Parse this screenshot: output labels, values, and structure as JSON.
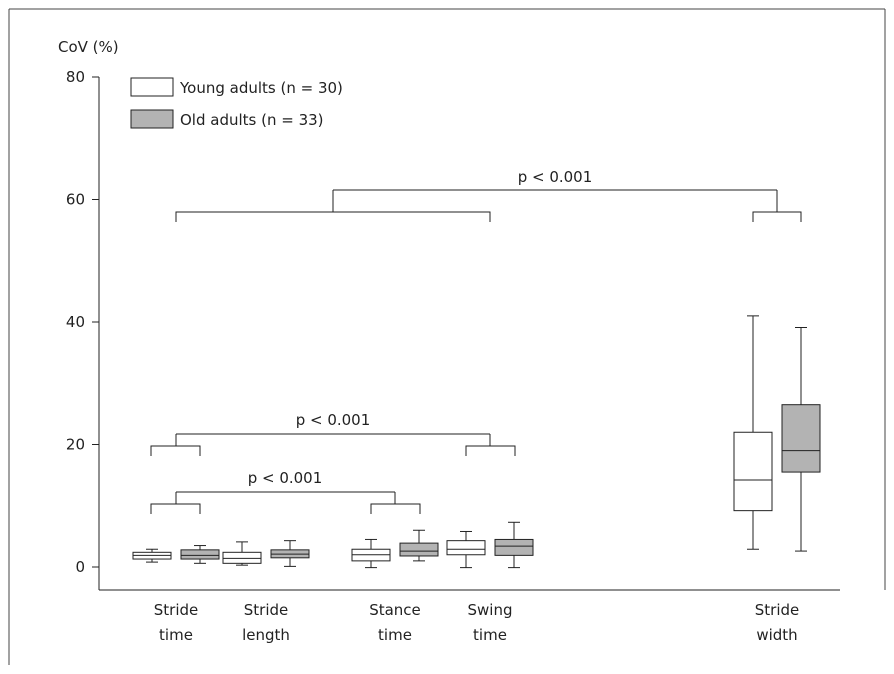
{
  "chart_data": {
    "type": "boxplot",
    "ylabel": "CoV (%)",
    "ylim": [
      0,
      80
    ],
    "yticks": [
      "0",
      "20",
      "40",
      "60",
      "80"
    ],
    "grid": false,
    "legend_placement": "top-left",
    "colors": {
      "young": "#ffffff",
      "old": "#b3b3b3",
      "stroke": "#222222"
    },
    "legend": [
      {
        "label": "Young adults (n = 30)",
        "group": "young"
      },
      {
        "label": "Old adults (n = 33)",
        "group": "old"
      }
    ],
    "groups": [
      {
        "label_lines": [
          "Stride",
          "time"
        ],
        "boxes": [
          {
            "group": "young",
            "min": 0.8,
            "q1": 1.3,
            "median": 1.9,
            "q3": 2.4,
            "max": 2.9
          },
          {
            "group": "old",
            "min": 0.6,
            "q1": 1.3,
            "median": 1.9,
            "q3": 2.8,
            "max": 3.5
          }
        ]
      },
      {
        "label_lines": [
          "Stride",
          "length"
        ],
        "boxes": [
          {
            "group": "young",
            "min": 0.3,
            "q1": 0.6,
            "median": 1.4,
            "q3": 2.4,
            "max": 4.1
          },
          {
            "group": "old",
            "min": 0.1,
            "q1": 1.5,
            "median": 2.1,
            "q3": 2.8,
            "max": 4.3
          }
        ]
      },
      {
        "label_lines": [
          "Stance",
          "time"
        ],
        "boxes": [
          {
            "group": "young",
            "min": -0.1,
            "q1": 1.0,
            "median": 2.0,
            "q3": 2.9,
            "max": 4.5
          },
          {
            "group": "old",
            "min": 1.0,
            "q1": 1.8,
            "median": 2.6,
            "q3": 3.9,
            "max": 6.0
          }
        ]
      },
      {
        "label_lines": [
          "Swing",
          "time"
        ],
        "boxes": [
          {
            "group": "young",
            "min": -0.1,
            "q1": 2.0,
            "median": 2.9,
            "q3": 4.3,
            "max": 5.8
          },
          {
            "group": "old",
            "min": -0.1,
            "q1": 1.9,
            "median": 3.4,
            "q3": 4.5,
            "max": 7.3
          }
        ]
      },
      {
        "label_lines": [
          "Stride",
          "width"
        ],
        "boxes": [
          {
            "group": "young",
            "min": 2.9,
            "q1": 9.2,
            "median": 14.2,
            "q3": 22.0,
            "max": 41.0
          },
          {
            "group": "old",
            "min": 2.6,
            "q1": 15.5,
            "median": 19.0,
            "q3": 26.5,
            "max": 39.1
          }
        ]
      }
    ],
    "annotations": [
      {
        "text": "p < 0.001",
        "from_groups": [
          0,
          3
        ],
        "to_groups": [
          4
        ]
      },
      {
        "text": "p < 0.001",
        "from_groups": [
          0
        ],
        "to_groups": [
          3
        ]
      },
      {
        "text": "p < 0.001",
        "from_groups": [
          0
        ],
        "to_groups": [
          2
        ]
      }
    ]
  }
}
